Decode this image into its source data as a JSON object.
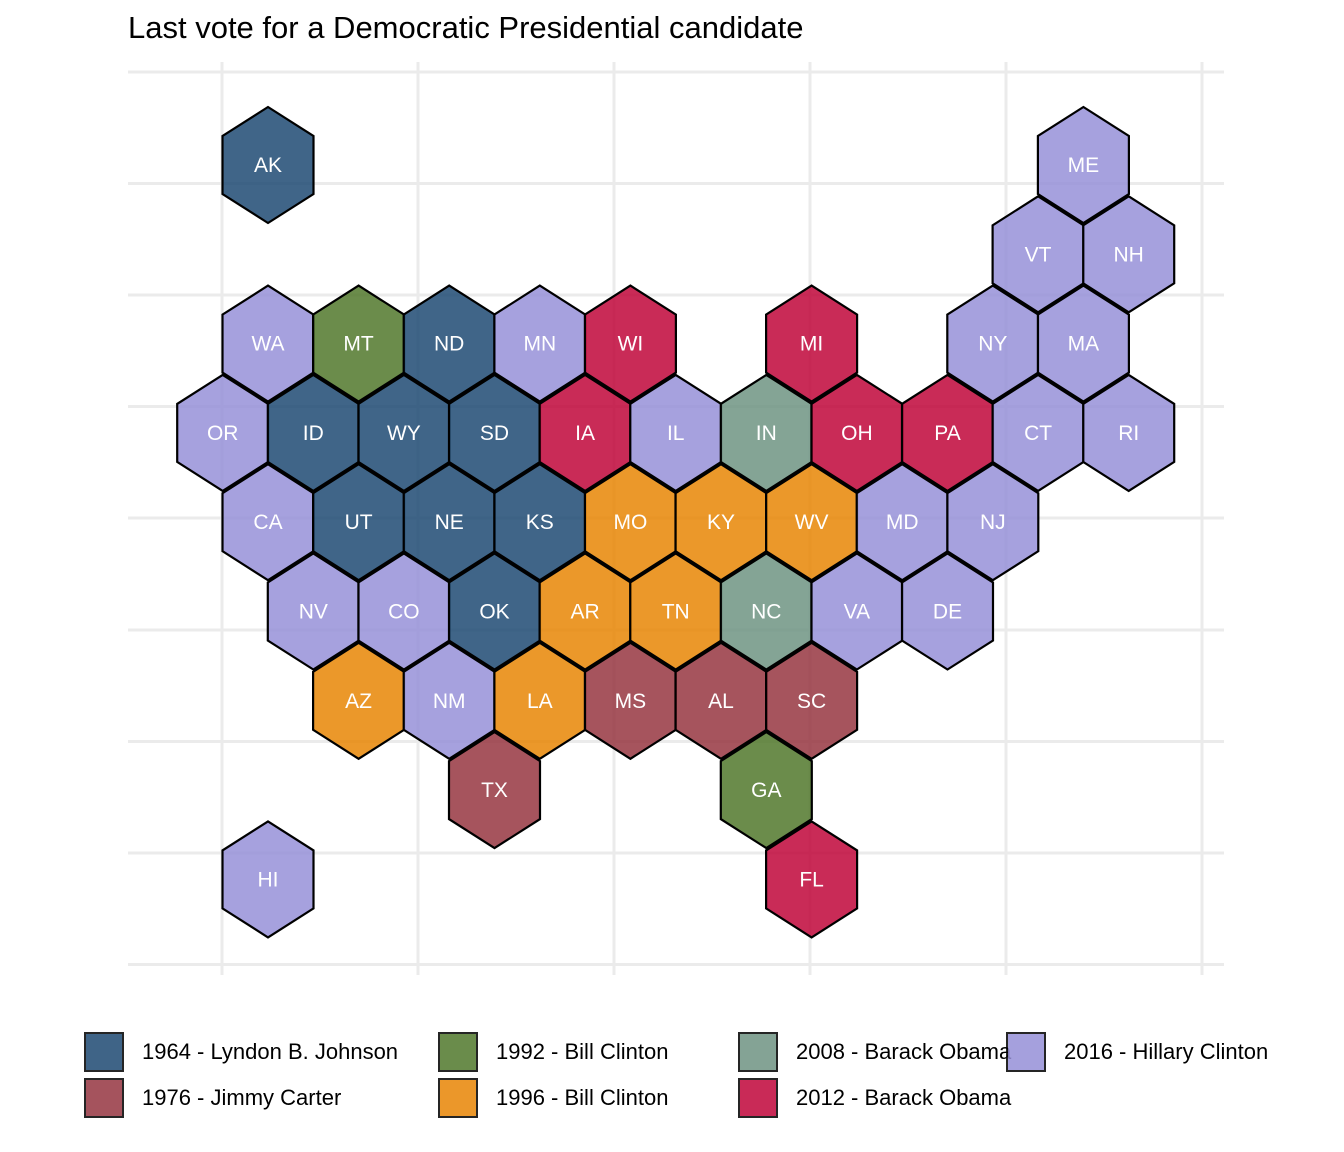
{
  "chart_data": {
    "type": "hex-tile-map",
    "title": "Last vote for a Democratic Presidential candidate",
    "grid": true,
    "legend_placement": "bottom",
    "categories": [
      {
        "label": "1964 - Lyndon B. Johnson",
        "color": "#1E4A73"
      },
      {
        "label": "1976 - Jimmy Carter",
        "color": "#963641"
      },
      {
        "label": "1992 - Bill Clinton",
        "color": "#51782C"
      },
      {
        "label": "1996 - Bill Clinton",
        "color": "#E88605"
      },
      {
        "label": "2008 - Barack Obama",
        "color": "#6F9483"
      },
      {
        "label": "2012 - Barack Obama",
        "color": "#C0063A"
      },
      {
        "label": "2016 - Hillary Clinton",
        "color": "#9690D8"
      }
    ],
    "states": [
      {
        "abbr": "AK",
        "category": 0,
        "col": 0,
        "row": 0
      },
      {
        "abbr": "ME",
        "category": 6,
        "col": 9,
        "row": 0
      },
      {
        "abbr": "VT",
        "category": 6,
        "col": 8.5,
        "row": 1
      },
      {
        "abbr": "NH",
        "category": 6,
        "col": 9.5,
        "row": 1
      },
      {
        "abbr": "WA",
        "category": 6,
        "col": 0,
        "row": 2
      },
      {
        "abbr": "MT",
        "category": 2,
        "col": 1,
        "row": 2
      },
      {
        "abbr": "ND",
        "category": 0,
        "col": 2,
        "row": 2
      },
      {
        "abbr": "MN",
        "category": 6,
        "col": 3,
        "row": 2
      },
      {
        "abbr": "WI",
        "category": 5,
        "col": 4,
        "row": 2
      },
      {
        "abbr": "MI",
        "category": 5,
        "col": 6,
        "row": 2
      },
      {
        "abbr": "NY",
        "category": 6,
        "col": 8,
        "row": 2
      },
      {
        "abbr": "MA",
        "category": 6,
        "col": 9,
        "row": 2
      },
      {
        "abbr": "OR",
        "category": 6,
        "col": -0.5,
        "row": 3
      },
      {
        "abbr": "ID",
        "category": 0,
        "col": 0.5,
        "row": 3
      },
      {
        "abbr": "WY",
        "category": 0,
        "col": 1.5,
        "row": 3
      },
      {
        "abbr": "SD",
        "category": 0,
        "col": 2.5,
        "row": 3
      },
      {
        "abbr": "IA",
        "category": 5,
        "col": 3.5,
        "row": 3
      },
      {
        "abbr": "IL",
        "category": 6,
        "col": 4.5,
        "row": 3
      },
      {
        "abbr": "IN",
        "category": 4,
        "col": 5.5,
        "row": 3
      },
      {
        "abbr": "OH",
        "category": 5,
        "col": 6.5,
        "row": 3
      },
      {
        "abbr": "PA",
        "category": 5,
        "col": 7.5,
        "row": 3
      },
      {
        "abbr": "CT",
        "category": 6,
        "col": 8.5,
        "row": 3
      },
      {
        "abbr": "RI",
        "category": 6,
        "col": 9.5,
        "row": 3
      },
      {
        "abbr": "CA",
        "category": 6,
        "col": 0,
        "row": 4
      },
      {
        "abbr": "UT",
        "category": 0,
        "col": 1,
        "row": 4
      },
      {
        "abbr": "NE",
        "category": 0,
        "col": 2,
        "row": 4
      },
      {
        "abbr": "KS",
        "category": 0,
        "col": 3,
        "row": 4
      },
      {
        "abbr": "MO",
        "category": 3,
        "col": 4,
        "row": 4
      },
      {
        "abbr": "KY",
        "category": 3,
        "col": 5,
        "row": 4
      },
      {
        "abbr": "WV",
        "category": 3,
        "col": 6,
        "row": 4
      },
      {
        "abbr": "MD",
        "category": 6,
        "col": 7,
        "row": 4
      },
      {
        "abbr": "NJ",
        "category": 6,
        "col": 8,
        "row": 4
      },
      {
        "abbr": "NV",
        "category": 6,
        "col": 0.5,
        "row": 5
      },
      {
        "abbr": "CO",
        "category": 6,
        "col": 1.5,
        "row": 5
      },
      {
        "abbr": "OK",
        "category": 0,
        "col": 2.5,
        "row": 5
      },
      {
        "abbr": "AR",
        "category": 3,
        "col": 3.5,
        "row": 5
      },
      {
        "abbr": "TN",
        "category": 3,
        "col": 4.5,
        "row": 5
      },
      {
        "abbr": "NC",
        "category": 4,
        "col": 5.5,
        "row": 5
      },
      {
        "abbr": "VA",
        "category": 6,
        "col": 6.5,
        "row": 5
      },
      {
        "abbr": "DE",
        "category": 6,
        "col": 7.5,
        "row": 5
      },
      {
        "abbr": "AZ",
        "category": 3,
        "col": 1,
        "row": 6
      },
      {
        "abbr": "NM",
        "category": 6,
        "col": 2,
        "row": 6
      },
      {
        "abbr": "LA",
        "category": 3,
        "col": 3,
        "row": 6
      },
      {
        "abbr": "MS",
        "category": 1,
        "col": 4,
        "row": 6
      },
      {
        "abbr": "AL",
        "category": 1,
        "col": 5,
        "row": 6
      },
      {
        "abbr": "SC",
        "category": 1,
        "col": 6,
        "row": 6
      },
      {
        "abbr": "TX",
        "category": 1,
        "col": 2.5,
        "row": 7
      },
      {
        "abbr": "GA",
        "category": 2,
        "col": 5.5,
        "row": 7
      },
      {
        "abbr": "HI",
        "category": 6,
        "col": 0,
        "row": 8
      },
      {
        "abbr": "FL",
        "category": 5,
        "col": 6,
        "row": 8
      }
    ]
  }
}
